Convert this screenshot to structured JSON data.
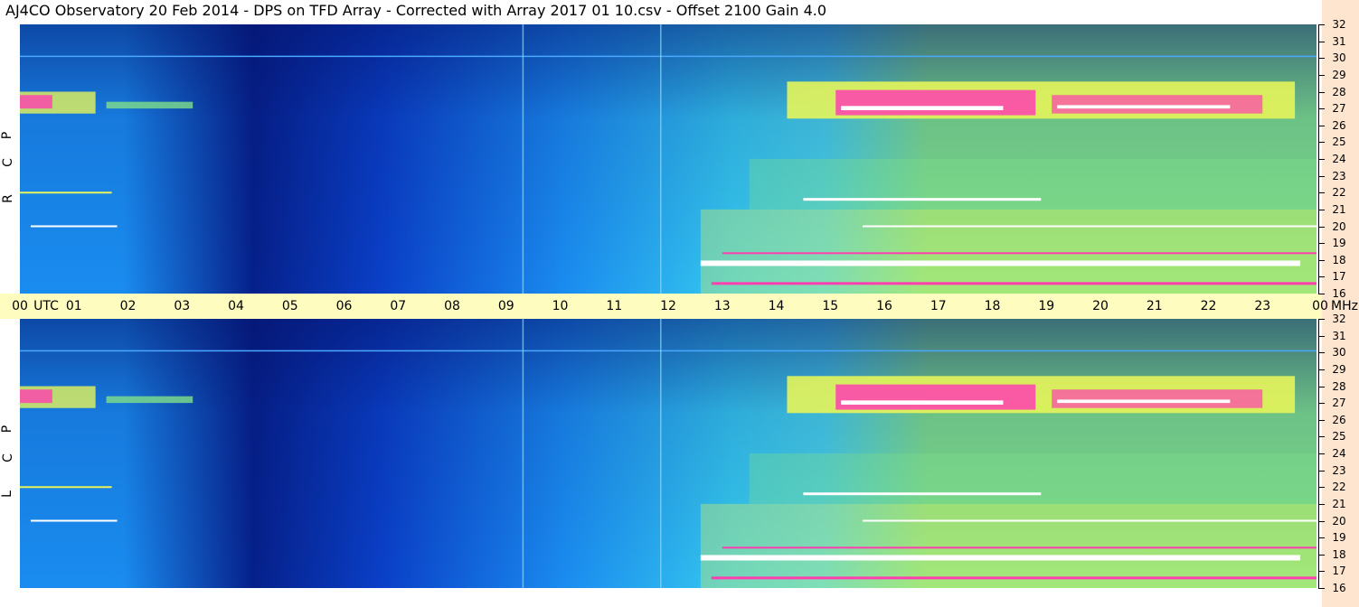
{
  "title": "AJ4CO Observatory  20 Feb 2014  -  DPS on TFD Array  -  Corrected with Array 2017 01 10.csv  -  Offset 2100  Gain 4.0",
  "chart_data": {
    "type": "heatmap",
    "x_axis": {
      "unit_label": "UTC",
      "ticks": [
        "00",
        "01",
        "02",
        "03",
        "04",
        "05",
        "06",
        "07",
        "08",
        "09",
        "10",
        "11",
        "12",
        "13",
        "14",
        "15",
        "16",
        "17",
        "18",
        "19",
        "20",
        "21",
        "22",
        "23",
        "00"
      ]
    },
    "y_axis": {
      "unit_label": "MHz",
      "range": [
        16,
        32
      ],
      "ticks": [
        "32",
        "31",
        "30",
        "29",
        "28",
        "27",
        "26",
        "25",
        "24",
        "23",
        "22",
        "21",
        "20",
        "19",
        "18",
        "17",
        "16"
      ]
    },
    "panels": [
      {
        "label_letters": [
          "R",
          "C",
          "P"
        ]
      },
      {
        "label_letters": [
          "L",
          "C",
          "P"
        ]
      }
    ],
    "colors": {
      "background": "#0a4fd6",
      "deep": "#06208a",
      "mid": "#1a8cf0",
      "light": "#35c8ee",
      "green": "#7fe08a",
      "yellow": "#e6f55a",
      "magenta": "#ff3fb0",
      "white": "#ffffff"
    }
  }
}
